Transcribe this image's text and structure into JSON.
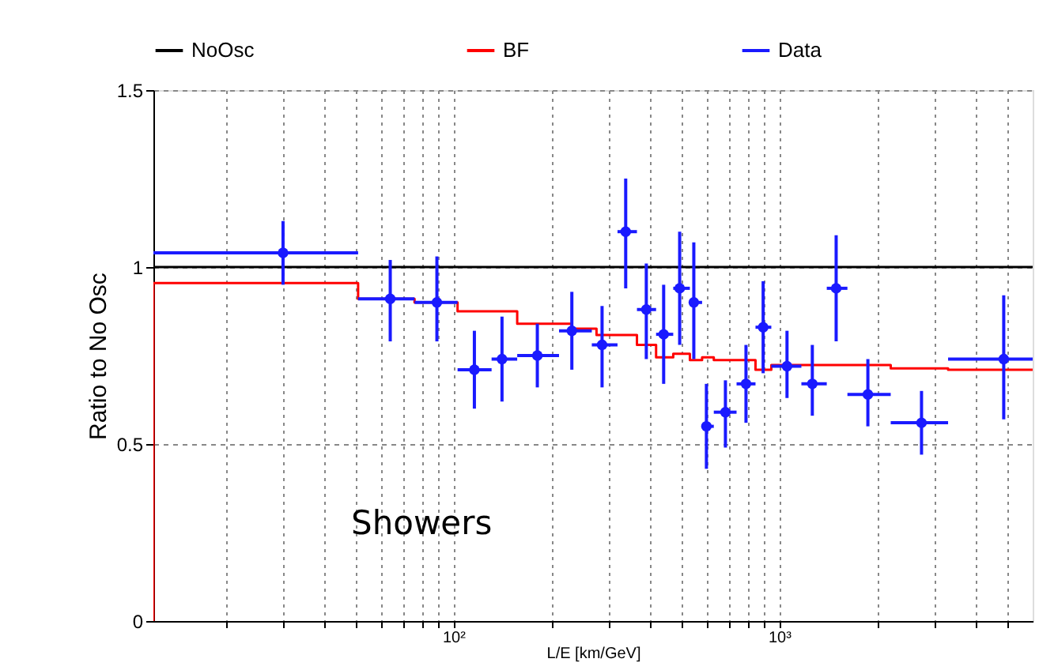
{
  "chart_data": {
    "type": "scatter",
    "xlabel": "L/E [km/GeV]",
    "ylabel": "Ratio to No Osc",
    "annotations": [
      "Showers"
    ],
    "log": "x",
    "grid": true,
    "legend": "top",
    "xlim": [
      12,
      6000
    ],
    "ylim": [
      0,
      1.5
    ],
    "yticks": [
      {
        "value": 0,
        "label": "0"
      },
      0.5,
      {
        "value": 1,
        "label": "1"
      },
      1.5
    ],
    "xticks": [
      {
        "value": 20,
        "label": null
      },
      {
        "value": 30,
        "label": null
      },
      {
        "value": 40,
        "label": null
      },
      {
        "value": 50,
        "label": null
      },
      {
        "value": 60,
        "label": null
      },
      {
        "value": 70,
        "label": null
      },
      {
        "value": 80,
        "label": null
      },
      {
        "value": 90,
        "label": null
      },
      {
        "value": 100,
        "label": "10²"
      },
      {
        "value": 200,
        "label": null
      },
      {
        "value": 300,
        "label": null
      },
      {
        "value": 400,
        "label": null
      },
      {
        "value": 500,
        "label": null
      },
      {
        "value": 600,
        "label": null
      },
      {
        "value": 700,
        "label": null
      },
      {
        "value": 800,
        "label": null
      },
      {
        "value": 900,
        "label": null
      },
      {
        "value": 1000,
        "label": "10³"
      },
      {
        "value": 2000,
        "label": null
      },
      {
        "value": 3000,
        "label": null
      },
      {
        "value": 4000,
        "label": null
      },
      {
        "value": 5000,
        "label": null
      }
    ],
    "series": [
      {
        "name": "NoOsc",
        "type": "line",
        "color": "#000000",
        "x": [
          12,
          6000
        ],
        "values": [
          1,
          1
        ]
      },
      {
        "name": "BF",
        "type": "step",
        "color": "#ff0000",
        "x": [
          12,
          12,
          51,
          76,
          103,
          157,
          231,
          275,
          366,
          419,
          473,
          532,
          580,
          630,
          846,
          946,
          2200,
          3300,
          6000
        ],
        "values": [
          0,
          0.955,
          0.91,
          0.9,
          0.875,
          0.84,
          0.826,
          0.808,
          0.78,
          0.745,
          0.755,
          0.737,
          0.745,
          0.737,
          0.71,
          0.723,
          0.714,
          0.71,
          0.71
        ]
      },
      {
        "name": "Data",
        "marker": "circle",
        "color": "#1a1aff",
        "x": [
          30,
          64,
          89,
          116,
          141,
          181,
          231,
          286,
          338,
          391,
          442,
          495,
          547,
          598,
          684,
          791,
          893,
          1057,
          1264,
          1496,
          1872,
          2735,
          4890
        ],
        "values": [
          1.04,
          0.91,
          0.9,
          0.71,
          0.74,
          0.75,
          0.82,
          0.78,
          1.1,
          0.88,
          0.81,
          0.94,
          0.9,
          0.55,
          0.59,
          0.67,
          0.83,
          0.72,
          0.67,
          0.94,
          0.64,
          0.56,
          0.74
        ],
        "errors": [
          [
            0.95,
            1.13
          ],
          [
            0.79,
            1.02
          ],
          [
            0.79,
            1.03
          ],
          [
            0.6,
            0.82
          ],
          [
            0.62,
            0.86
          ],
          [
            0.66,
            0.84
          ],
          [
            0.71,
            0.93
          ],
          [
            0.66,
            0.89
          ],
          [
            0.94,
            1.25
          ],
          [
            0.74,
            1.01
          ],
          [
            0.67,
            0.95
          ],
          [
            0.78,
            1.1
          ],
          [
            0.74,
            1.07
          ],
          [
            0.43,
            0.67
          ],
          [
            0.49,
            0.68
          ],
          [
            0.56,
            0.78
          ],
          [
            0.7,
            0.96
          ],
          [
            0.63,
            0.82
          ],
          [
            0.58,
            0.78
          ],
          [
            0.79,
            1.09
          ],
          [
            0.55,
            0.74
          ],
          [
            0.47,
            0.65
          ],
          [
            0.57,
            0.92
          ]
        ],
        "xerrors": [
          [
            12,
            51
          ],
          [
            51,
            76
          ],
          [
            76,
            103
          ],
          [
            103,
            131
          ],
          [
            131,
            157
          ],
          [
            157,
            211
          ],
          [
            211,
            266
          ],
          [
            266,
            319
          ],
          [
            319,
            366
          ],
          [
            366,
            419
          ],
          [
            419,
            473
          ],
          [
            473,
            532
          ],
          [
            532,
            580
          ],
          [
            580,
            630
          ],
          [
            630,
            740
          ],
          [
            740,
            846
          ],
          [
            846,
            946
          ],
          [
            946,
            1170
          ],
          [
            1170,
            1400
          ],
          [
            1400,
            1620
          ],
          [
            1620,
            2200
          ],
          [
            2200,
            3300
          ],
          [
            3300,
            6000
          ]
        ]
      }
    ]
  }
}
